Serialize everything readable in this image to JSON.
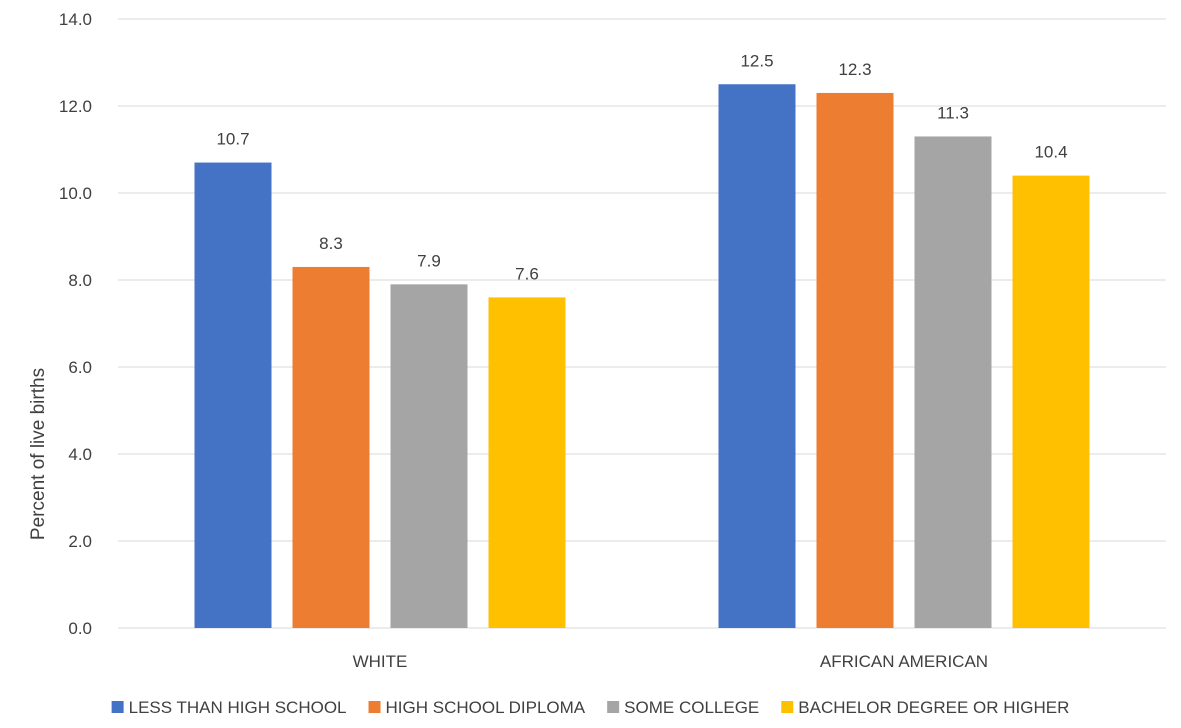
{
  "chart_data": {
    "type": "bar",
    "title": "",
    "xlabel": "",
    "ylabel": "Percent of live births",
    "ylim": [
      0,
      14
    ],
    "ytick_step": 2,
    "ytick_labels": [
      "0.0",
      "2.0",
      "4.0",
      "6.0",
      "8.0",
      "10.0",
      "12.0",
      "14.0"
    ],
    "grid": true,
    "legend_position": "bottom",
    "categories": [
      "WHITE",
      "AFRICAN AMERICAN"
    ],
    "series": [
      {
        "name": "LESS THAN HIGH SCHOOL",
        "color": "#4472C4",
        "values": [
          10.7,
          12.5
        ]
      },
      {
        "name": "HIGH SCHOOL DIPLOMA",
        "color": "#ED7D31",
        "values": [
          8.3,
          12.3
        ]
      },
      {
        "name": "SOME COLLEGE",
        "color": "#A5A5A5",
        "values": [
          7.9,
          11.3
        ]
      },
      {
        "name": "BACHELOR DEGREE OR HIGHER",
        "color": "#FFC000",
        "values": [
          7.6,
          10.4
        ]
      }
    ]
  }
}
